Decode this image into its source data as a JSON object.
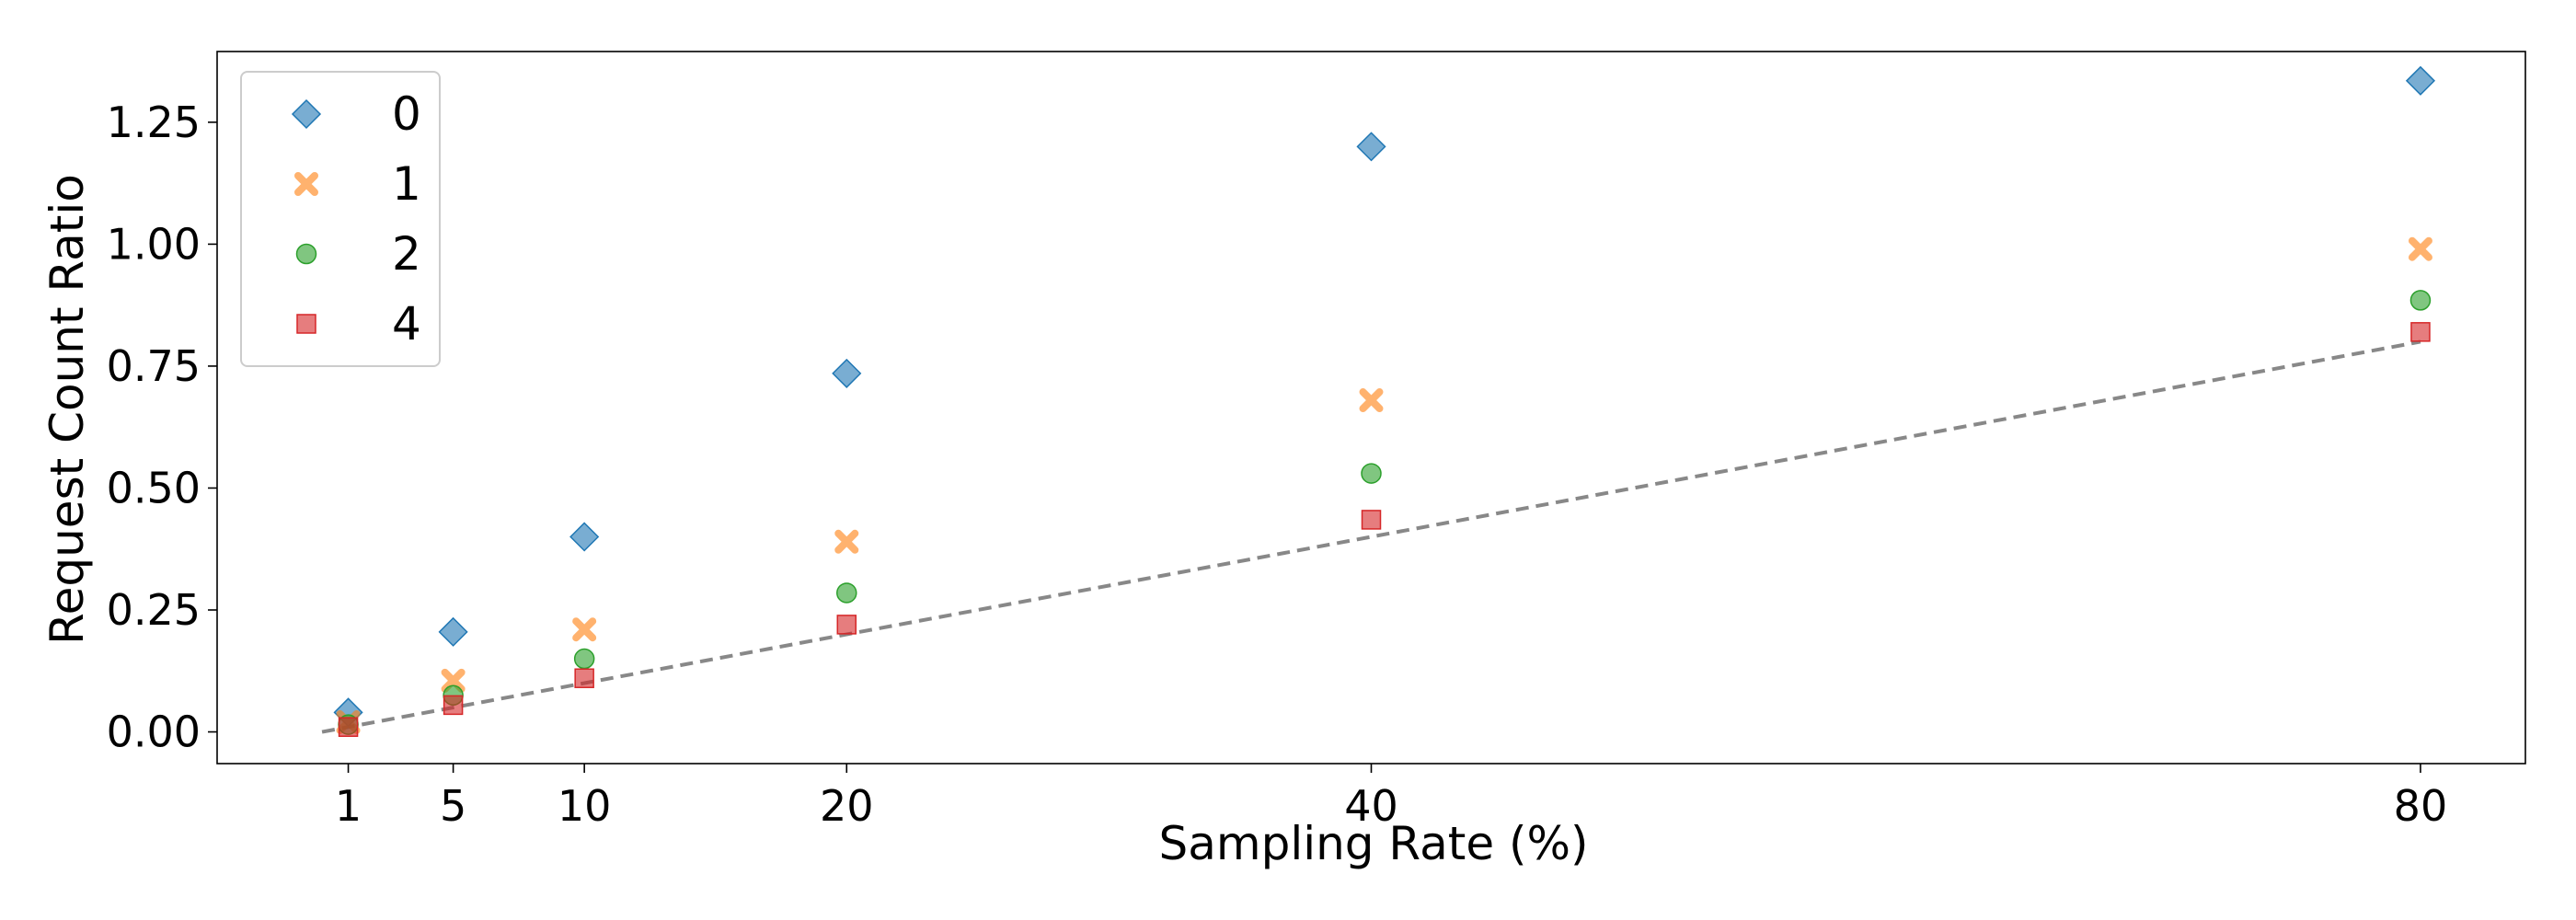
{
  "chart_data": {
    "type": "scatter",
    "title": "",
    "xlabel": "Sampling Rate (%)",
    "ylabel": "Request Count Ratio",
    "x": [
      1,
      5,
      10,
      20,
      40,
      80
    ],
    "xlim": [
      -4,
      84
    ],
    "ylim": [
      -0.065,
      1.395
    ],
    "x_ticks": [
      1,
      5,
      10,
      20,
      40,
      80
    ],
    "y_ticks": [
      0.0,
      0.25,
      0.5,
      0.75,
      1.0,
      1.25
    ],
    "x_tick_labels": [
      "1",
      "5",
      "10",
      "20",
      "40",
      "80"
    ],
    "y_tick_labels": [
      "0.00",
      "0.25",
      "0.50",
      "0.75",
      "1.00",
      "1.25"
    ],
    "grid": false,
    "legend_position": "top-left",
    "series": [
      {
        "name": "0",
        "marker": "diamond",
        "color": "#1f77b4",
        "values": [
          0.04,
          0.205,
          0.4,
          0.735,
          1.2,
          1.335
        ]
      },
      {
        "name": "1",
        "marker": "x",
        "color": "#ff7f0e",
        "values": [
          0.02,
          0.105,
          0.21,
          0.39,
          0.68,
          0.99
        ]
      },
      {
        "name": "2",
        "marker": "circle",
        "color": "#2ca02c",
        "values": [
          0.015,
          0.075,
          0.15,
          0.285,
          0.53,
          0.885
        ]
      },
      {
        "name": "4",
        "marker": "square",
        "color": "#d62728",
        "values": [
          0.01,
          0.055,
          0.11,
          0.22,
          0.435,
          0.82
        ]
      }
    ],
    "reference_line": {
      "style": "dashed",
      "color": "#888888",
      "x": [
        0,
        80
      ],
      "y": [
        0.0,
        0.8
      ]
    }
  }
}
